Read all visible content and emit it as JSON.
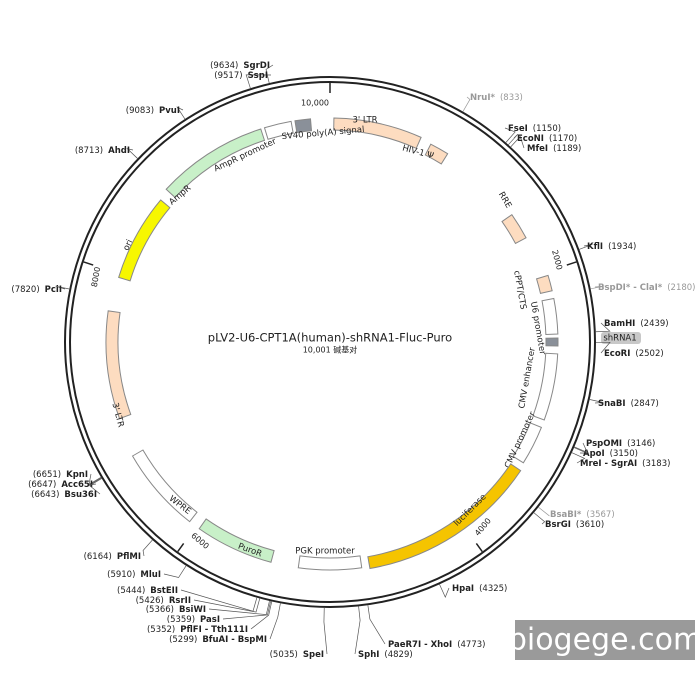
{
  "title": "pLV2-U6-CPT1A(human)-shRNA1-Fluc-Puro",
  "subtitle": "10,001 碱基对",
  "ticks": [
    "2000",
    "4000",
    "6000",
    "8000",
    "10,000"
  ],
  "features": [
    "3' LTR",
    "HIV-1 Ψ",
    "RRE",
    "cPPT/CTS",
    "U6 promoter",
    "shRNA1",
    "CMV enhancer",
    "CMV promoter",
    "luciferase",
    "PGK promoter",
    "PuroR",
    "WPRE",
    "3' LTR",
    "ori",
    "AmpR",
    "AmpR promoter",
    "SV40 poly(A) signal"
  ],
  "sites": [
    {
      "name": "SgrDI",
      "position": "(9634)"
    },
    {
      "name": "SspI",
      "position": "(9517)"
    },
    {
      "name": "PvuI",
      "position": "(9083)"
    },
    {
      "name": "AhdI",
      "position": "(8713)"
    },
    {
      "name": "PciI",
      "position": "(7820)"
    },
    {
      "name": "KpnI",
      "position": "(6651)"
    },
    {
      "name": "Acc65I",
      "position": "(6647)"
    },
    {
      "name": "Bsu36I",
      "position": "(6643)"
    },
    {
      "name": "PflMI",
      "position": "(6164)"
    },
    {
      "name": "MluI",
      "position": "(5910)"
    },
    {
      "name": "BstEII",
      "position": "(5444)"
    },
    {
      "name": "RsrII",
      "position": "(5426)"
    },
    {
      "name": "BsiWI",
      "position": "(5366)"
    },
    {
      "name": "PasI",
      "position": "(5359)"
    },
    {
      "name": "PflFI - Tth111I",
      "position": "(5352)"
    },
    {
      "name": "BfuAI - BspMI",
      "position": "(5299)"
    },
    {
      "name": "SpeI",
      "position": "(5035)"
    },
    {
      "name": "SphI",
      "position": "(4829)"
    },
    {
      "name": "PaeR7I - XhoI",
      "position": "(4773)"
    },
    {
      "name": "HpaI",
      "position": "(4325)"
    },
    {
      "name": "BsrGI",
      "position": "(3610)"
    },
    {
      "name": "BsaBI*",
      "position": "(3567)",
      "color": "#999999"
    },
    {
      "name": "MreI - SgrAI",
      "position": "(3183)"
    },
    {
      "name": "ApoI",
      "position": "(3150)"
    },
    {
      "name": "PspOMI",
      "position": "(3146)"
    },
    {
      "name": "SnaBI",
      "position": "(2847)"
    },
    {
      "name": "EcoRI",
      "position": "(2502)"
    },
    {
      "name": "BamHI",
      "position": "(2439)"
    },
    {
      "name": "BspDI* - ClaI*",
      "position": "(2180)",
      "color": "#999999"
    },
    {
      "name": "KflI",
      "position": "(1934)"
    },
    {
      "name": "MfeI",
      "position": "(1189)"
    },
    {
      "name": "EcoNI",
      "position": "(1170)"
    },
    {
      "name": "FseI",
      "position": "(1150)"
    },
    {
      "name": "NruI*",
      "position": "(833)",
      "color": "#999999"
    }
  ],
  "watermark": "biogege.com"
}
